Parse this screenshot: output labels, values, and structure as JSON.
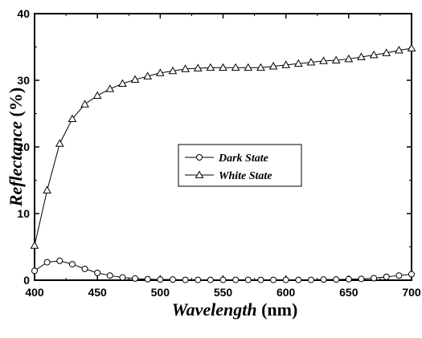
{
  "chart_data": {
    "type": "line",
    "title": "",
    "xlabel_main": "Wavelength",
    "xlabel_unit": " (nm)",
    "ylabel_main": "Reflectance",
    "ylabel_unit": " (%)",
    "xlim": [
      400,
      700
    ],
    "ylim": [
      0,
      40
    ],
    "xticks": [
      400,
      450,
      500,
      550,
      600,
      650,
      700
    ],
    "yticks": [
      0,
      10,
      20,
      30,
      40
    ],
    "grid": false,
    "legend_position": "center",
    "x": [
      400,
      410,
      420,
      430,
      440,
      450,
      460,
      470,
      480,
      490,
      500,
      510,
      520,
      530,
      540,
      550,
      560,
      570,
      580,
      590,
      600,
      610,
      620,
      630,
      640,
      650,
      660,
      670,
      680,
      690,
      700
    ],
    "series": [
      {
        "name": "Dark State",
        "marker": "circle",
        "color": "#000000",
        "values": [
          1.4,
          2.7,
          2.9,
          2.4,
          1.7,
          1.1,
          0.7,
          0.4,
          0.25,
          0.15,
          0.1,
          0.1,
          0.05,
          0.05,
          0.05,
          0.05,
          0.05,
          0.05,
          0.05,
          0.05,
          0.05,
          0.05,
          0.05,
          0.1,
          0.1,
          0.15,
          0.2,
          0.3,
          0.5,
          0.7,
          0.9
        ]
      },
      {
        "name": "White State",
        "marker": "triangle",
        "color": "#000000",
        "values": [
          5.2,
          13.5,
          20.5,
          24.2,
          26.4,
          27.7,
          28.7,
          29.5,
          30.1,
          30.6,
          31.1,
          31.4,
          31.7,
          31.8,
          31.9,
          31.9,
          31.9,
          31.9,
          31.9,
          32.1,
          32.3,
          32.5,
          32.7,
          32.9,
          33.0,
          33.2,
          33.5,
          33.8,
          34.1,
          34.5,
          34.8
        ]
      }
    ]
  }
}
